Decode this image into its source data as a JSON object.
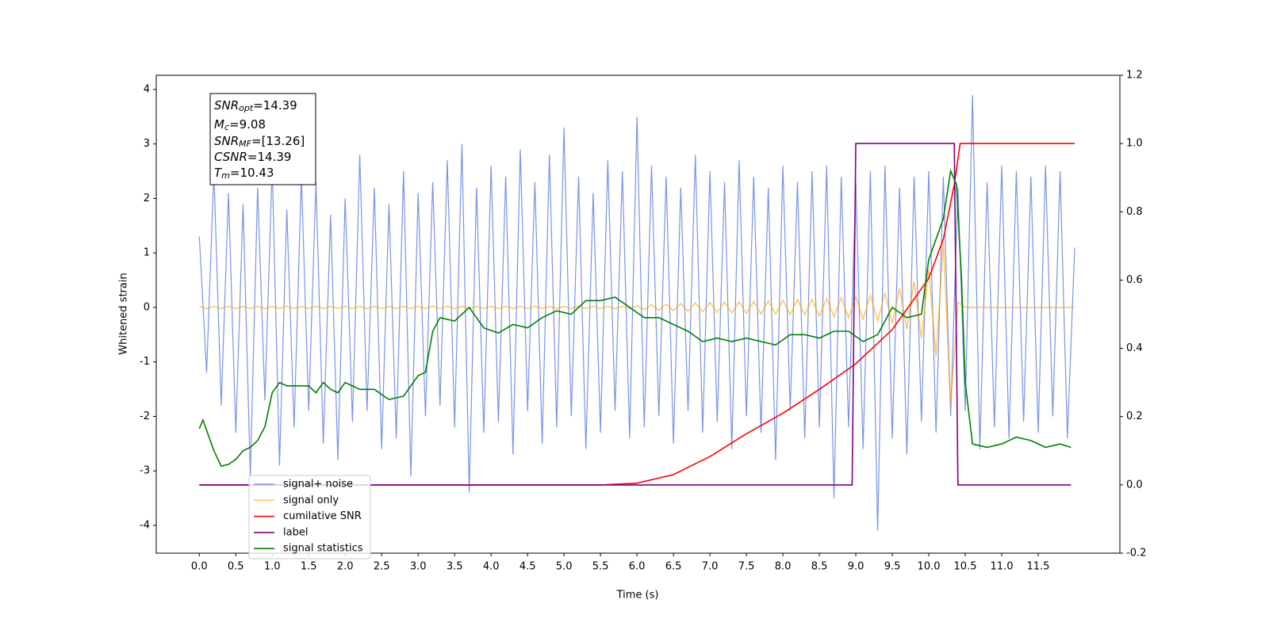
{
  "chart_data": {
    "type": "line",
    "xlabel": "Time (s)",
    "ylabel": "Whitened strain",
    "xlim": [
      -0.59,
      12.62
    ],
    "ylim": [
      -4.51,
      4.26
    ],
    "y2lim": [
      -0.2,
      1.2
    ],
    "xticks": [
      {
        "value": 0,
        "label": "0.0"
      },
      0.5,
      {
        "value": 1,
        "label": "1.0"
      },
      1.5,
      {
        "value": 2,
        "label": "2.0"
      },
      2.5,
      {
        "value": 3,
        "label": "3.0"
      },
      3.5,
      {
        "value": 4,
        "label": "4.0"
      },
      4.5,
      {
        "value": 5,
        "label": "5.0"
      },
      5.5,
      {
        "value": 6,
        "label": "6.0"
      },
      6.5,
      {
        "value": 7,
        "label": "7.0"
      },
      7.5,
      {
        "value": 8,
        "label": "8.0"
      },
      8.5,
      {
        "value": 9,
        "label": "9.0"
      },
      9.5,
      {
        "value": 10,
        "label": "10.0"
      },
      10.5,
      {
        "value": 11,
        "label": "11.0"
      },
      11.5
    ],
    "yticks": [
      -4,
      -3,
      -2,
      -1,
      0,
      1,
      2,
      3,
      4
    ],
    "y2ticks": [
      -0.2,
      {
        "value": 0,
        "label": "0.0"
      },
      0.2,
      0.4,
      0.6,
      0.8,
      {
        "value": 1,
        "label": "1.0"
      },
      1.2
    ],
    "x": [
      0,
      0.1,
      0.2,
      0.3,
      0.4,
      0.5,
      0.6,
      0.7,
      0.8,
      0.9,
      1,
      1.1,
      1.2,
      1.3,
      1.4,
      1.5,
      1.6,
      1.7,
      1.8,
      1.9,
      2,
      2.1,
      2.2,
      2.3,
      2.4,
      2.5,
      2.6,
      2.7,
      2.8,
      2.9,
      3,
      3.1,
      3.2,
      3.3,
      3.4,
      3.5,
      3.6,
      3.7,
      3.8,
      3.9,
      4,
      4.1,
      4.2,
      4.3,
      4.4,
      4.5,
      4.6,
      4.7,
      4.8,
      4.9,
      5,
      5.1,
      5.2,
      5.3,
      5.4,
      5.5,
      5.6,
      5.7,
      5.8,
      5.9,
      6,
      6.1,
      6.2,
      6.3,
      6.4,
      6.5,
      6.6,
      6.7,
      6.8,
      6.9,
      7,
      7.1,
      7.2,
      7.3,
      7.4,
      7.5,
      7.6,
      7.7,
      7.8,
      7.9,
      8,
      8.1,
      8.2,
      8.3,
      8.4,
      8.5,
      8.6,
      8.7,
      8.8,
      8.9,
      9,
      9.1,
      9.2,
      9.3,
      9.4,
      9.5,
      9.6,
      9.7,
      9.8,
      9.9,
      10,
      10.1,
      10.2,
      10.3,
      10.4,
      10.5,
      10.6,
      10.7,
      10.8,
      10.9,
      11,
      11.1,
      11.2,
      11.3,
      11.4,
      11.5,
      11.6,
      11.7,
      11.8,
      11.9,
      12
    ],
    "series": [
      {
        "name": "signal+ noise",
        "color": "#7894e8",
        "values": [
          1.3,
          -1.2,
          2.5,
          -1.8,
          2.1,
          -2.3,
          1.9,
          -3.1,
          2.2,
          -1.7,
          2.6,
          -2.9,
          1.8,
          -2.2,
          2.4,
          -1.9,
          2.3,
          -2.5,
          1.7,
          -2.8,
          2.0,
          -2.1,
          2.8,
          -1.9,
          2.2,
          -2.6,
          1.9,
          -2.4,
          2.5,
          -3.1,
          2.1,
          -2.0,
          2.3,
          -1.8,
          2.7,
          -2.2,
          3.0,
          -3.4,
          2.2,
          -2.3,
          2.6,
          -2.1,
          2.4,
          -2.7,
          2.9,
          -1.9,
          2.3,
          -2.5,
          2.8,
          -2.2,
          3.3,
          -2.0,
          2.4,
          -2.6,
          2.1,
          -2.3,
          2.7,
          -1.9,
          2.5,
          -2.4,
          3.5,
          -2.2,
          2.6,
          -2.0,
          2.4,
          -2.5,
          2.2,
          -1.9,
          2.8,
          -2.3,
          2.5,
          -2.1,
          2.3,
          -2.6,
          2.7,
          -2.0,
          2.4,
          -2.3,
          2.2,
          -2.8,
          2.6,
          -1.9,
          2.3,
          -2.4,
          2.5,
          -2.2,
          2.6,
          -3.5,
          2.4,
          -2.2,
          2.3,
          -2.6,
          2.5,
          -4.1,
          2.6,
          -2.4,
          2.2,
          -2.7,
          2.4,
          -2.1,
          2.5,
          -2.3,
          2.4,
          -2.0,
          2.2,
          -1.9,
          3.9,
          -2.6,
          2.3,
          -2.2,
          2.6,
          -2.4,
          2.5,
          -2.1,
          2.4,
          -2.3,
          2.6,
          -2.0,
          2.5,
          -2.4,
          1.1
        ]
      },
      {
        "name": "signal only",
        "color": "#ffa500",
        "values": [
          0.02,
          -0.02,
          0.02,
          -0.02,
          0.02,
          -0.02,
          0.02,
          -0.02,
          0.02,
          -0.02,
          0.02,
          -0.02,
          0.02,
          -0.02,
          0.02,
          -0.02,
          0.02,
          -0.02,
          0.02,
          -0.02,
          0.02,
          -0.02,
          0.02,
          -0.02,
          0.02,
          -0.02,
          0.02,
          -0.02,
          0.02,
          -0.02,
          0.02,
          -0.02,
          0.02,
          -0.02,
          0.02,
          -0.02,
          0.02,
          -0.02,
          0.02,
          -0.02,
          0.02,
          -0.02,
          0.02,
          -0.02,
          0.02,
          -0.02,
          0.02,
          -0.02,
          0.02,
          -0.02,
          0.02,
          -0.02,
          0.02,
          -0.02,
          0.02,
          -0.02,
          0.02,
          -0.02,
          0.02,
          -0.02,
          0.03,
          -0.04,
          0.05,
          -0.05,
          0.06,
          -0.06,
          0.07,
          -0.07,
          0.08,
          -0.08,
          0.09,
          -0.09,
          0.1,
          -0.1,
          0.1,
          -0.11,
          0.11,
          -0.12,
          0.12,
          -0.12,
          0.13,
          -0.13,
          0.14,
          -0.14,
          0.15,
          -0.16,
          0.16,
          -0.17,
          0.18,
          -0.19,
          0.2,
          -0.22,
          0.23,
          -0.25,
          0.27,
          -0.3,
          0.35,
          -0.4,
          0.48,
          -0.57,
          0.7,
          -0.9,
          1.2,
          -1.8,
          0.1,
          0,
          0,
          0,
          0,
          0,
          0,
          0,
          0,
          0,
          0,
          0,
          0,
          0,
          0,
          0,
          0
        ]
      },
      {
        "name": "cumilative SNR",
        "color": "#ff0000",
        "axis": "y2",
        "x": [
          0,
          5.5,
          6.0,
          6.5,
          7.0,
          7.5,
          8.0,
          8.5,
          9.0,
          9.5,
          10.0,
          10.2,
          10.35,
          10.43,
          12.0
        ],
        "values": [
          0,
          0,
          0.005,
          0.03,
          0.083,
          0.15,
          0.21,
          0.28,
          0.355,
          0.455,
          0.605,
          0.72,
          0.88,
          1.0,
          1.0
        ]
      },
      {
        "name": "label",
        "color": "#800080",
        "axis": "y2",
        "x": [
          0,
          8.95,
          9.0,
          10.35,
          10.4,
          11.95
        ],
        "values": [
          0,
          0,
          1,
          1,
          0,
          0
        ]
      },
      {
        "name": "signal statistics",
        "color": "#008000",
        "axis": "y2",
        "x": [
          0,
          0.05,
          0.2,
          0.3,
          0.4,
          0.5,
          0.6,
          0.7,
          0.8,
          0.9,
          1.0,
          1.1,
          1.2,
          1.4,
          1.5,
          1.6,
          1.7,
          1.8,
          1.9,
          2.0,
          2.2,
          2.4,
          2.6,
          2.8,
          3.0,
          3.1,
          3.2,
          3.3,
          3.5,
          3.7,
          3.9,
          4.1,
          4.3,
          4.5,
          4.7,
          4.9,
          5.1,
          5.3,
          5.5,
          5.7,
          5.9,
          6.1,
          6.3,
          6.5,
          6.7,
          6.9,
          7.1,
          7.3,
          7.5,
          7.7,
          7.9,
          8.1,
          8.3,
          8.5,
          8.7,
          8.9,
          9.1,
          9.3,
          9.5,
          9.7,
          9.9,
          10.0,
          10.1,
          10.2,
          10.3,
          10.38,
          10.45,
          10.5,
          10.6,
          10.8,
          11.0,
          11.2,
          11.4,
          11.6,
          11.8,
          11.95
        ],
        "values": [
          0.165,
          0.19,
          0.1,
          0.055,
          0.06,
          0.075,
          0.1,
          0.11,
          0.13,
          0.17,
          0.27,
          0.3,
          0.29,
          0.29,
          0.29,
          0.27,
          0.3,
          0.28,
          0.27,
          0.3,
          0.28,
          0.28,
          0.25,
          0.26,
          0.32,
          0.33,
          0.45,
          0.49,
          0.48,
          0.52,
          0.46,
          0.445,
          0.47,
          0.46,
          0.49,
          0.51,
          0.5,
          0.54,
          0.54,
          0.55,
          0.52,
          0.49,
          0.49,
          0.47,
          0.45,
          0.42,
          0.43,
          0.42,
          0.43,
          0.42,
          0.41,
          0.44,
          0.44,
          0.43,
          0.45,
          0.45,
          0.42,
          0.44,
          0.52,
          0.49,
          0.5,
          0.66,
          0.72,
          0.78,
          0.92,
          0.88,
          0.6,
          0.3,
          0.12,
          0.11,
          0.12,
          0.14,
          0.13,
          0.11,
          0.12,
          0.11
        ]
      }
    ],
    "annotation": [
      [
        "SNR",
        "opt",
        "=14.39"
      ],
      [
        "M",
        "c",
        "=9.08"
      ],
      [
        "SNR",
        "MF",
        "=[13.26]"
      ],
      [
        "CSNR",
        "",
        "=14.39"
      ],
      [
        "T",
        "m",
        "=10.43"
      ]
    ]
  }
}
